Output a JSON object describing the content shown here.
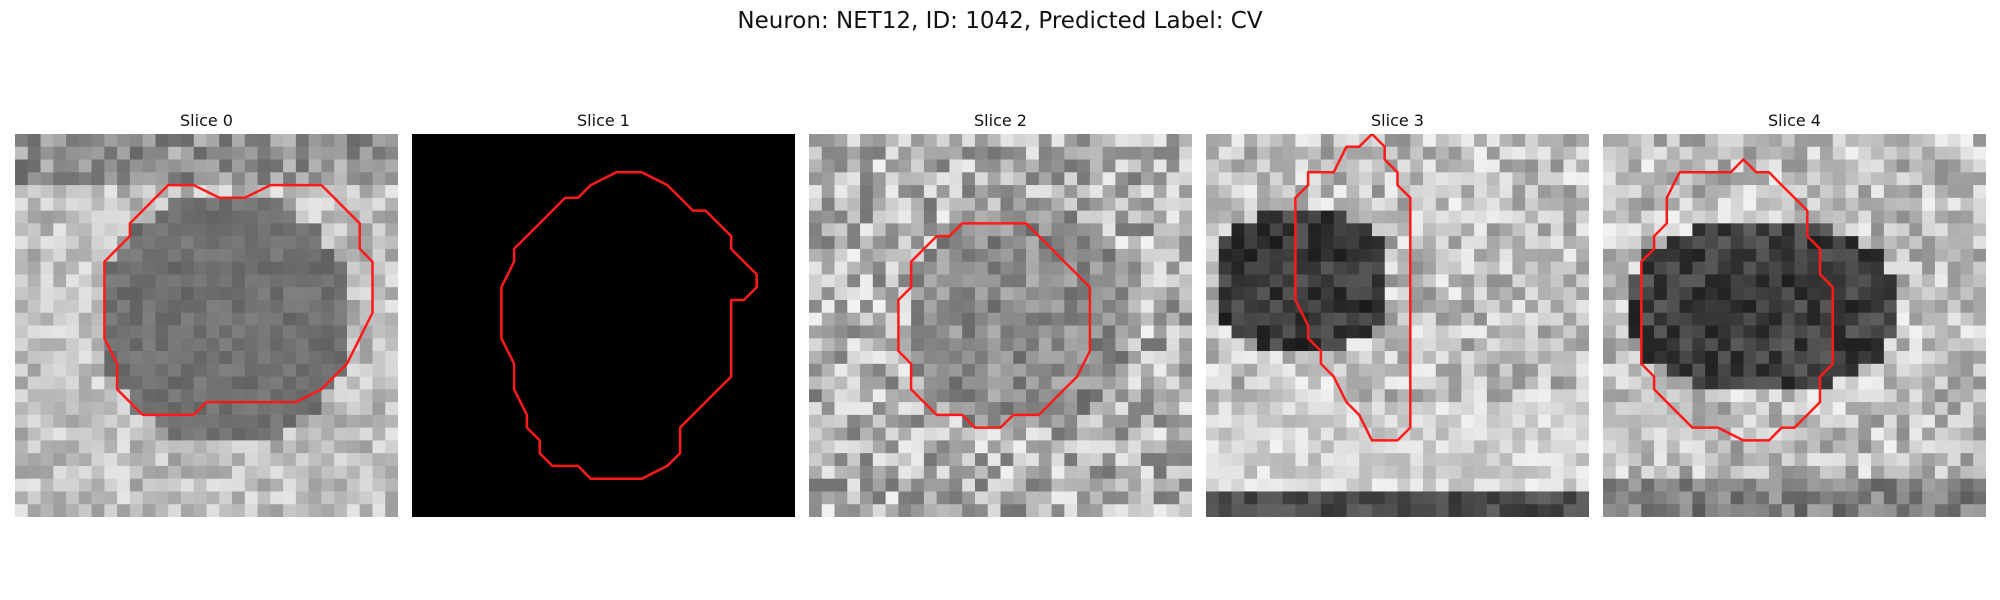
{
  "figure": {
    "title": "Neuron: NET12, ID: 1042, Predicted Label: CV"
  },
  "slices": [
    {
      "title": "Slice 0",
      "style": "blob-light-ring",
      "seed": 11
    },
    {
      "title": "Slice 1",
      "style": "black",
      "seed": 22
    },
    {
      "title": "Slice 2",
      "style": "noisy",
      "seed": 33
    },
    {
      "title": "Slice 3",
      "style": "dark-left",
      "seed": 44
    },
    {
      "title": "Slice 4",
      "style": "dark-center",
      "seed": 55
    }
  ],
  "colors": {
    "contour": "#ff1a1a",
    "background": "#ffffff"
  }
}
